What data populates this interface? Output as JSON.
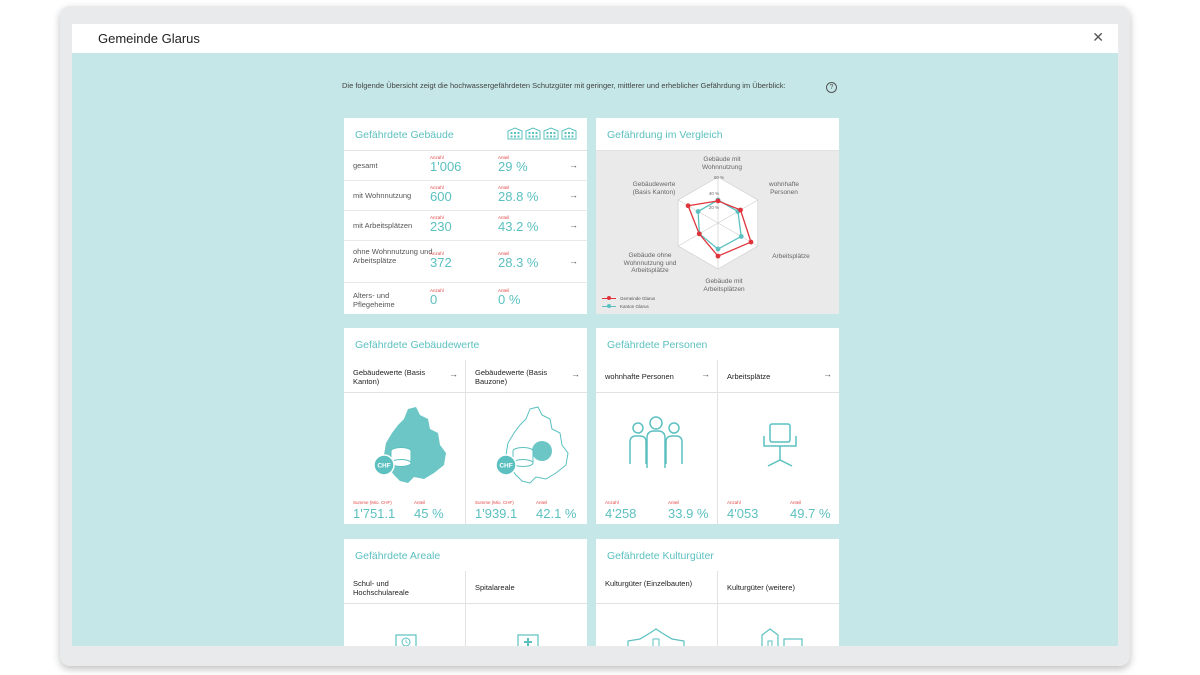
{
  "window": {
    "title": "Gemeinde Glarus",
    "close_icon": "close-icon"
  },
  "intro": "Die folgende Übersicht zeigt die hochwassergefährdeten Schutzgüter mit geringer, mittlerer und erheblicher Gefährdung im Überblick:",
  "help": "?",
  "buildings": {
    "title": "Gefährdete Gebäude",
    "anzahl_label": "Anzahl",
    "anteil_label": "Anteil",
    "rows": [
      {
        "label": "gesamt",
        "anzahl": "1'006",
        "anteil": "29 %",
        "arrow": "→"
      },
      {
        "label": "mit Wohnnutzung",
        "anzahl": "600",
        "anteil": "28.8 %",
        "arrow": "→"
      },
      {
        "label": "mit Arbeitsplätzen",
        "anzahl": "230",
        "anteil": "43.2 %",
        "arrow": "→"
      },
      {
        "label": "ohne Wohnnutzung und Arbeitsplätze",
        "anzahl": "372",
        "anteil": "28.3 %",
        "arrow": "→"
      },
      {
        "label": "Alters- und Pflegeheime",
        "anzahl": "0",
        "anteil": "0 %",
        "arrow": ""
      }
    ]
  },
  "vergleich": {
    "title": "Gefährdung im Vergleich",
    "axes": [
      "Gebäude mit Wohnnutzung",
      "wohnhafte Personen",
      "Arbeitsplätze",
      "Gebäude mit Arbeitsplätzen",
      "Gebäude ohne Wohnnutzung und Arbeitsplätze",
      "Gebäudewerte (Basis Kanton)"
    ],
    "tick_labels": [
      "60 %",
      "40 %",
      "20 %"
    ],
    "legend": [
      "Gemeinde Glarus",
      "Kanton Glarus"
    ],
    "colors": {
      "gemeinde": "#e0343c",
      "kanton": "#5cc0c0"
    }
  },
  "chart_data": {
    "type": "radar",
    "title": "",
    "categories": [
      "Gebäude mit Wohnnutzung",
      "wohnhafte Personen",
      "Arbeitsplätze",
      "Gebäude mit Arbeitsplätzen",
      "Gebäude ohne Wohnnutzung und Arbeitsplätze",
      "Gebäudewerte (Basis Kanton)"
    ],
    "rmax": 60,
    "series": [
      {
        "name": "Gemeinde Glarus",
        "values": [
          28.8,
          33.9,
          49.7,
          43.2,
          28.3,
          45
        ]
      },
      {
        "name": "Kanton Glarus",
        "values": [
          30,
          30,
          35,
          34,
          28,
          30
        ]
      }
    ]
  },
  "werte": {
    "title": "Gefährdete Gebäudewerte",
    "summe_label": "Summe (Mio. CHF)",
    "anteil_label": "Anteil",
    "chf_label": "CHF",
    "cols": [
      {
        "label": "Gebäudewerte (Basis Kanton)",
        "arrow": "→",
        "summe": "1'751.1",
        "anteil": "45 %",
        "summe_label": "Summe (Mio. CHF)"
      },
      {
        "label": "Gebäudewerte (Basis Bauzone)",
        "arrow": "→",
        "summe": "1'939.1",
        "anteil": "42.1 %",
        "summe_label": "Summe (Mio. CHF)"
      }
    ]
  },
  "personen": {
    "title": "Gefährdete Personen",
    "anzahl_label": "Anzahl",
    "anteil_label": "Anteil",
    "cols": [
      {
        "label": "wohnhafte Personen",
        "arrow": "→",
        "anzahl": "4'258",
        "anteil": "33.9 %"
      },
      {
        "label": "Arbeitsplätze",
        "arrow": "→",
        "anzahl": "4'053",
        "anteil": "49.7 %"
      }
    ]
  },
  "areale": {
    "title": "Gefährdete Areale",
    "cols": [
      {
        "label": "Schul- und Hochschulareale"
      },
      {
        "label": "Spitalareale"
      }
    ]
  },
  "kultur": {
    "title": "Gefährdete Kulturgüter",
    "cols": [
      {
        "label": "Kulturgüter (Einzelbauten)"
      },
      {
        "label": "Kulturgüter (weitere)"
      }
    ]
  }
}
